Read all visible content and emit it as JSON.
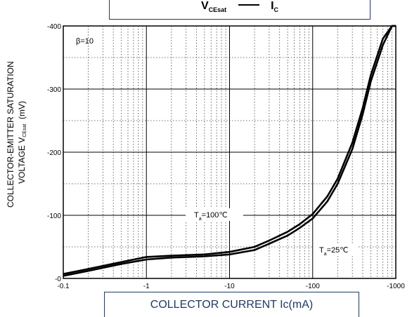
{
  "title": {
    "main": "V",
    "main_sub": "CEsat",
    "vs": "I",
    "vs_sub": "C"
  },
  "xlabel": "COLLECTOR CURRENT Ic(mA)",
  "ylabel": {
    "line1": "COLLECTOR-EMITTER SATURATION",
    "line2_prefix": "VOLTAGE   V",
    "line2_sub": "CEsat",
    "line2_unit": "(mV)"
  },
  "annotations": {
    "beta": "β=10",
    "t100_prefix": "T",
    "t100_sub": "a",
    "t100_value": "=100℃",
    "t25_prefix": "T",
    "t25_sub": "a",
    "t25_value": "=25℃"
  },
  "chart_data": {
    "type": "line",
    "title": "VCEsat — IC",
    "xlabel": "COLLECTOR CURRENT Ic(mA)",
    "ylabel": "COLLECTOR-EMITTER SATURATION VOLTAGE VCEsat (mV)",
    "x_scale": "log",
    "xlim": [
      -0.1,
      -1000
    ],
    "ylim": [
      0,
      -400
    ],
    "x_ticks": [
      "-0.1",
      "-1",
      "-10",
      "-100",
      "-1000"
    ],
    "y_ticks": [
      "-0",
      "-100",
      "-200",
      "-300",
      "-400"
    ],
    "grid": true,
    "series": [
      {
        "name": "Ta=100℃",
        "x": [
          -0.1,
          -0.2,
          -0.5,
          -1,
          -2,
          -5,
          -10,
          -20,
          -30,
          -50,
          -70,
          -100,
          -150,
          -200,
          -300,
          -400,
          -500,
          -700,
          -900,
          -1000
        ],
        "y": [
          -7,
          -15,
          -26,
          -34,
          -36,
          -38,
          -42,
          -50,
          -60,
          -74,
          -86,
          -102,
          -130,
          -158,
          -215,
          -270,
          -322,
          -380,
          -400,
          -400
        ]
      },
      {
        "name": "Ta=25℃",
        "x": [
          -0.1,
          -0.2,
          -0.5,
          -1,
          -2,
          -5,
          -10,
          -20,
          -30,
          -50,
          -70,
          -100,
          -150,
          -200,
          -300,
          -400,
          -500,
          -700,
          -900,
          -1000
        ],
        "y": [
          -4,
          -12,
          -23,
          -30,
          -33,
          -35,
          -38,
          -45,
          -55,
          -68,
          -80,
          -95,
          -122,
          -150,
          -205,
          -260,
          -312,
          -370,
          -400,
          -400
        ]
      }
    ]
  }
}
